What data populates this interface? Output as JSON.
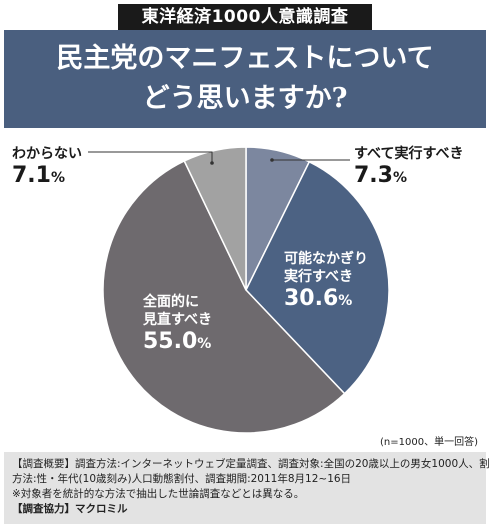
{
  "badge": "東洋経済1000人意識調査",
  "headline": {
    "line1": "民主党のマニフェストについて",
    "line2": "どう思いますか?"
  },
  "chart_data": {
    "type": "pie",
    "start_angle_deg": 0,
    "direction": "clockwise",
    "slices": [
      {
        "label_lines": [
          "すべて実行すべき"
        ],
        "value": 7.3,
        "color": "#7c879f"
      },
      {
        "label_lines": [
          "可能なかぎり",
          "実行すべき"
        ],
        "value": 30.6,
        "color": "#4c6283"
      },
      {
        "label_lines": [
          "全面的に",
          "見直すべき"
        ],
        "value": 55.0,
        "color": "#6e6a6e"
      },
      {
        "label_lines": [
          "わからない"
        ],
        "value": 7.1,
        "color": "#a2a2a2"
      }
    ],
    "value_strings": [
      "7.3",
      "30.6",
      "55.0",
      "7.1"
    ],
    "unit": "%"
  },
  "note_n": "(n=1000、単一回答)",
  "footer": {
    "line1_tag": "【調査概要】",
    "line1": "調査方法:インターネットウェブ定量調査、調査対象:全国の20歳以上の男女1000人、割付",
    "line2": "方法:性・年代(10歳刻み)人口動態割付、調査期間:2011年8月12~16日",
    "line3": "※対象者を統計的な方法で抽出した世論調査などとは異なる。",
    "line4_tag": "【調査協力】",
    "line4": "マクロミル"
  }
}
